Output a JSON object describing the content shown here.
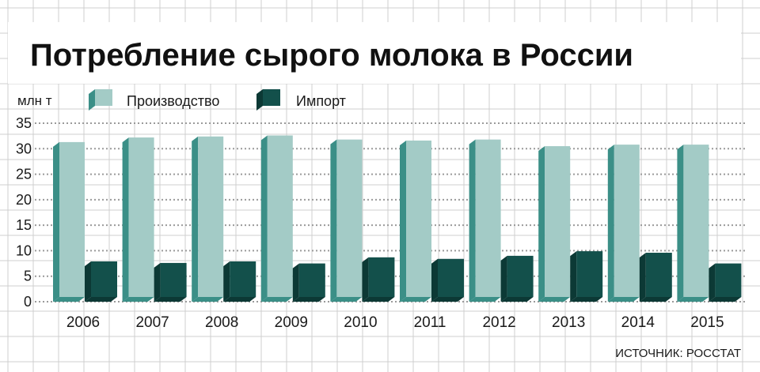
{
  "chart_data": {
    "type": "bar",
    "title": "Потребление сырого молока в России",
    "ylabel": "млн т",
    "xlabel": "",
    "categories": [
      "2006",
      "2007",
      "2008",
      "2009",
      "2010",
      "2011",
      "2012",
      "2013",
      "2014",
      "2015"
    ],
    "series": [
      {
        "name": "Производство",
        "values": [
          31.3,
          32.2,
          32.4,
          32.6,
          31.8,
          31.6,
          31.8,
          30.5,
          30.8,
          30.8
        ]
      },
      {
        "name": "Импорт",
        "values": [
          7.9,
          7.6,
          7.9,
          7.5,
          8.7,
          8.4,
          9.0,
          9.9,
          9.6,
          7.5
        ]
      }
    ],
    "y_ticks": [
      0,
      5,
      10,
      15,
      20,
      25,
      30,
      35
    ],
    "ylim": [
      0,
      35
    ],
    "grid": true,
    "legend_position": "top-left",
    "source": "ИСТОЧНИК: РОССТАТ",
    "colors": {
      "production_front": "#a3cbc6",
      "production_side": "#3b8f87",
      "import_front": "#13504b",
      "import_side": "#0c3935",
      "grid_paper": "#cfcfcf",
      "dotted_grid": "#9a9a9a",
      "text": "#1a1a1a"
    }
  }
}
